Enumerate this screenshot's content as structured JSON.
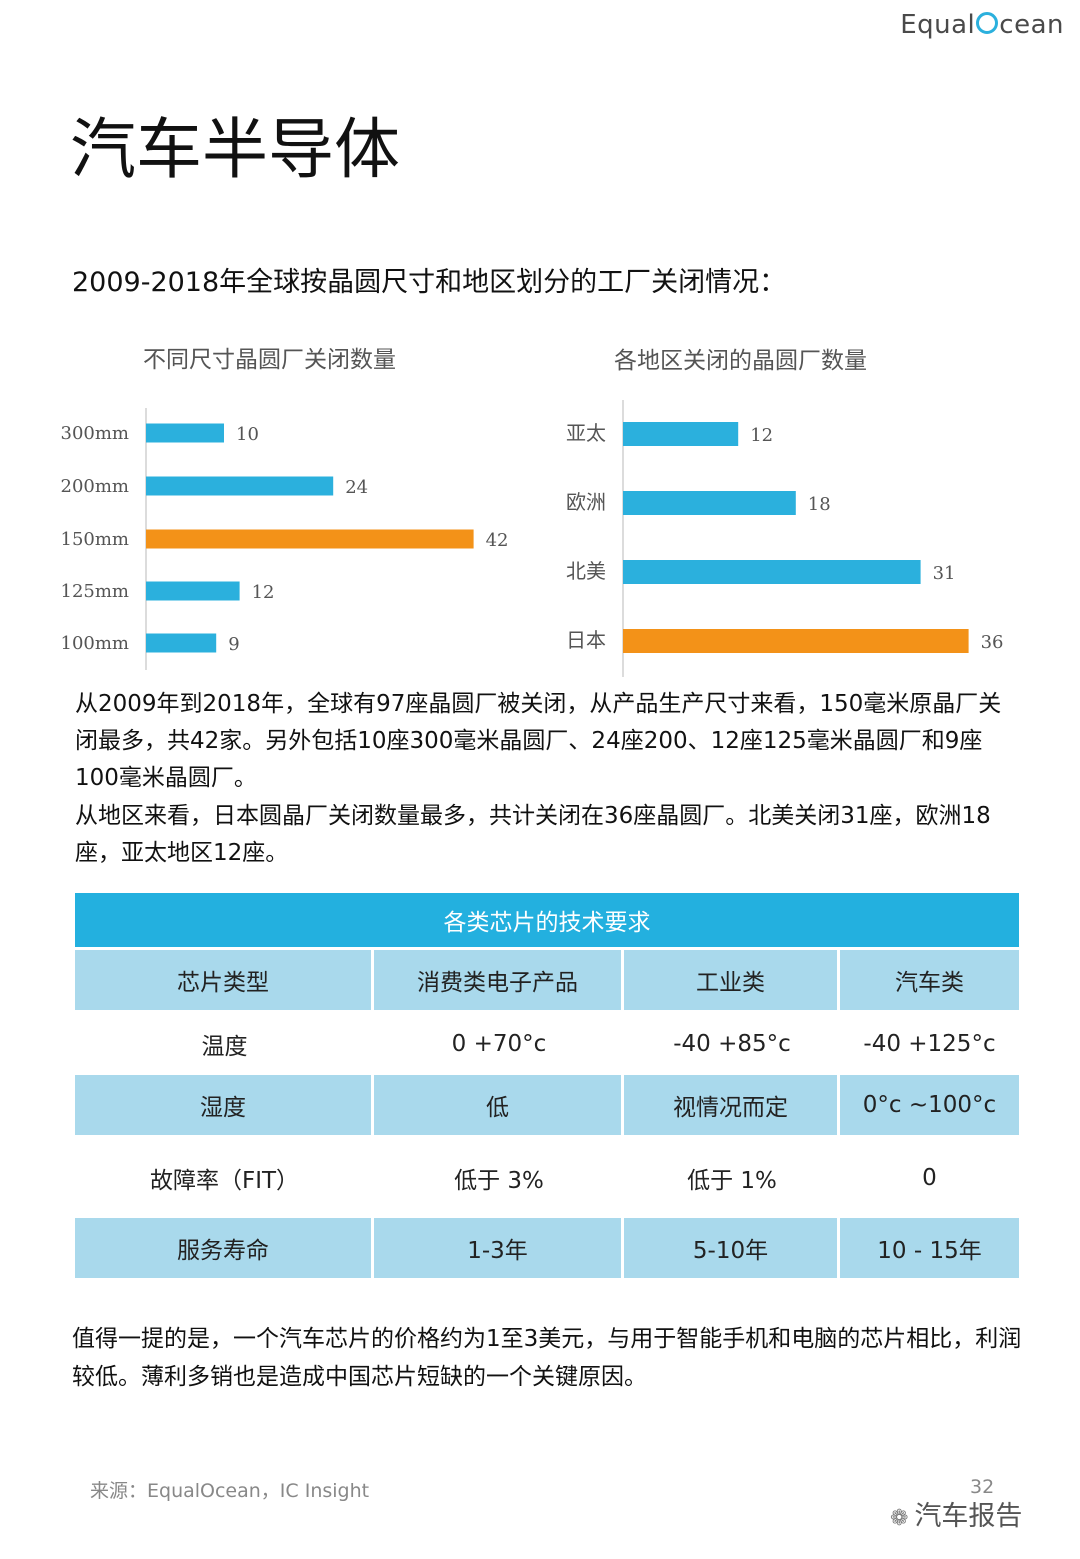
{
  "brand": {
    "logo_prefix": "Equal",
    "logo_suffix": "cean"
  },
  "page_title": "汽车半导体",
  "subtitle": "2009-2018年全球按晶圆尺寸和地区划分的工厂关闭情况：",
  "chart_data": [
    {
      "type": "bar",
      "orientation": "horizontal",
      "title": "不同尺寸晶圆厂关闭数量",
      "categories": [
        "300mm",
        "200mm",
        "150mm",
        "125mm",
        "100mm"
      ],
      "values": [
        10,
        24,
        42,
        12,
        9
      ],
      "highlight_index": 2,
      "xlim": [
        0,
        45
      ],
      "colors": {
        "default": "#2bb0dd",
        "highlight": "#f39218"
      }
    },
    {
      "type": "bar",
      "orientation": "horizontal",
      "title": "各地区关闭的晶圆厂数量",
      "categories": [
        "亚太",
        "欧洲",
        "北美",
        "日本"
      ],
      "values": [
        12,
        18,
        31,
        36
      ],
      "highlight_index": 3,
      "xlim": [
        0,
        38
      ],
      "colors": {
        "default": "#2bb0dd",
        "highlight": "#f39218"
      }
    }
  ],
  "paragraphs": [
    "从2009年到2018年，全球有97座晶圆厂被关闭，从产品生产尺寸来看，150毫米原晶厂关闭最多，共42家。另外包括10座300毫米晶圆厂、24座200、12座125毫米晶圆厂和9座100毫米晶圆厂。",
    "从地区来看，日本圆晶厂关闭数量最多，共计关闭在36座晶圆厂。北美关闭31座，欧洲18座，亚太地区12座。"
  ],
  "table": {
    "title": "各类芯片的技术要求",
    "headers": [
      "芯片类型",
      "消费类电子产品",
      "工业类",
      "汽车类"
    ],
    "rows": [
      [
        "温度",
        "0  +70°c",
        "-40  +85°c",
        "-40 +125°c"
      ],
      [
        "湿度",
        "低",
        "视情况而定",
        "0°c ~100°c"
      ],
      [
        "故障率（FIT）",
        "低于 3%",
        "低于 1%",
        "0"
      ],
      [
        "服务寿命",
        "1-3年",
        "5-10年",
        "10 - 15年"
      ]
    ]
  },
  "note": "值得一提的是，一个汽车芯片的价格约为1至3美元，与用于智能手机和电脑的芯片相比，利润较低。薄利多销也是造成中国芯片短缺的一个关键原因。",
  "footer": {
    "source": "来源：EqualOcean，IC Insight",
    "page_number": "32",
    "watermark": "汽车报告"
  }
}
